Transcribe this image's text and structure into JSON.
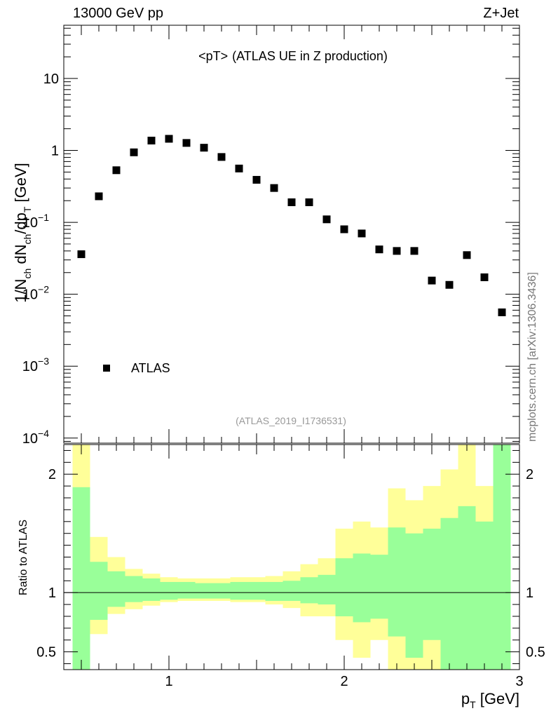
{
  "header": {
    "energy_label": "13000 GeV pp",
    "process_label": "Z+Jet"
  },
  "side_label": "mcplots.cern.ch [arXiv:1306.3436]",
  "watermark": "(ATLAS_2019_I1736531)",
  "colors": {
    "band_outer": "#ffff99",
    "band_inner": "#99ff99",
    "marker": "#000000"
  },
  "chart_data": [
    {
      "type": "scatter",
      "title_main": "<pT>",
      "title_sub": "(ATLAS UE in Z production)",
      "ylabel": {
        "p1": "1/N",
        "s1": "ch",
        "p2": " dN",
        "s2": "ch",
        "p3": "/dp",
        "s3": "T",
        "p4": " [GeV]"
      },
      "yscale": "log",
      "ylim": [
        8.5e-05,
        55
      ],
      "xlim": [
        0.4,
        3.0
      ],
      "y_ticks": [
        {
          "value": 10,
          "base": "10",
          "exp": ""
        },
        {
          "value": 1,
          "base": "1",
          "exp": ""
        },
        {
          "value": 0.1,
          "base": "10",
          "exp": "−1"
        },
        {
          "value": 0.01,
          "base": "10",
          "exp": "−2"
        },
        {
          "value": 0.001,
          "base": "10",
          "exp": "−3"
        },
        {
          "value": 0.0001,
          "base": "10",
          "exp": "−4"
        }
      ],
      "legend": {
        "label": "ATLAS",
        "position": "bottom-left"
      },
      "series": [
        {
          "name": "ATLAS",
          "x": [
            0.5,
            0.6,
            0.7,
            0.8,
            0.9,
            1.0,
            1.1,
            1.2,
            1.3,
            1.4,
            1.5,
            1.6,
            1.7,
            1.8,
            1.9,
            2.0,
            2.1,
            2.2,
            2.3,
            2.4,
            2.5,
            2.6,
            2.7,
            2.8,
            2.9
          ],
          "y": [
            0.036,
            0.23,
            0.53,
            0.94,
            1.37,
            1.45,
            1.27,
            1.09,
            0.81,
            0.56,
            0.39,
            0.3,
            0.19,
            0.19,
            0.11,
            0.08,
            0.07,
            0.042,
            0.04,
            0.04,
            0.0155,
            0.0135,
            0.035,
            0.0172,
            0.0056
          ]
        }
      ]
    },
    {
      "type": "area",
      "ylabel": "Ratio to ATLAS",
      "xlabel": {
        "main": "p",
        "sub": "T",
        "unit": " [GeV]"
      },
      "xlim": [
        0.4,
        3.0
      ],
      "ylim": [
        0.35,
        2.25
      ],
      "reference_line": 1,
      "y_ticks": [
        {
          "value": 2,
          "label": "2"
        },
        {
          "value": 1,
          "label": "1"
        },
        {
          "value": 0.5,
          "label": "0.5"
        }
      ],
      "x_ticks": [
        {
          "value": 1,
          "label": "1"
        },
        {
          "value": 2,
          "label": "2"
        },
        {
          "value": 3,
          "label": "3"
        }
      ],
      "bin_edges": [
        0.45,
        0.55,
        0.65,
        0.75,
        0.85,
        0.95,
        1.05,
        1.15,
        1.25,
        1.35,
        1.45,
        1.55,
        1.65,
        1.75,
        1.85,
        1.95,
        2.05,
        2.15,
        2.25,
        2.35,
        2.45,
        2.55,
        2.65,
        2.75,
        2.85,
        2.95
      ],
      "outer_band": {
        "name": "total uncertainty",
        "lo": [
          0.3,
          0.65,
          0.82,
          0.86,
          0.89,
          0.92,
          0.93,
          0.93,
          0.93,
          0.92,
          0.92,
          0.9,
          0.87,
          0.8,
          0.8,
          0.6,
          0.45,
          0.6,
          0.3,
          0.3,
          0.3,
          0.3,
          0.3,
          0.3,
          0.3
        ],
        "hi": [
          2.3,
          1.47,
          1.3,
          1.2,
          1.16,
          1.13,
          1.12,
          1.12,
          1.12,
          1.13,
          1.13,
          1.14,
          1.18,
          1.24,
          1.29,
          1.54,
          1.6,
          1.55,
          1.88,
          1.78,
          1.9,
          2.04,
          2.3,
          1.9,
          2.3
        ]
      },
      "inner_band": {
        "name": "statistical uncertainty",
        "lo": [
          0.3,
          0.77,
          0.88,
          0.92,
          0.93,
          0.94,
          0.95,
          0.95,
          0.95,
          0.94,
          0.94,
          0.93,
          0.93,
          0.91,
          0.9,
          0.8,
          0.75,
          0.78,
          0.63,
          0.45,
          0.6,
          0.3,
          0.3,
          0.3,
          0.3
        ],
        "hi": [
          1.89,
          1.26,
          1.18,
          1.14,
          1.12,
          1.09,
          1.09,
          1.08,
          1.08,
          1.09,
          1.09,
          1.09,
          1.1,
          1.13,
          1.15,
          1.29,
          1.33,
          1.32,
          1.55,
          1.5,
          1.54,
          1.63,
          1.73,
          1.6,
          2.3
        ]
      }
    }
  ]
}
